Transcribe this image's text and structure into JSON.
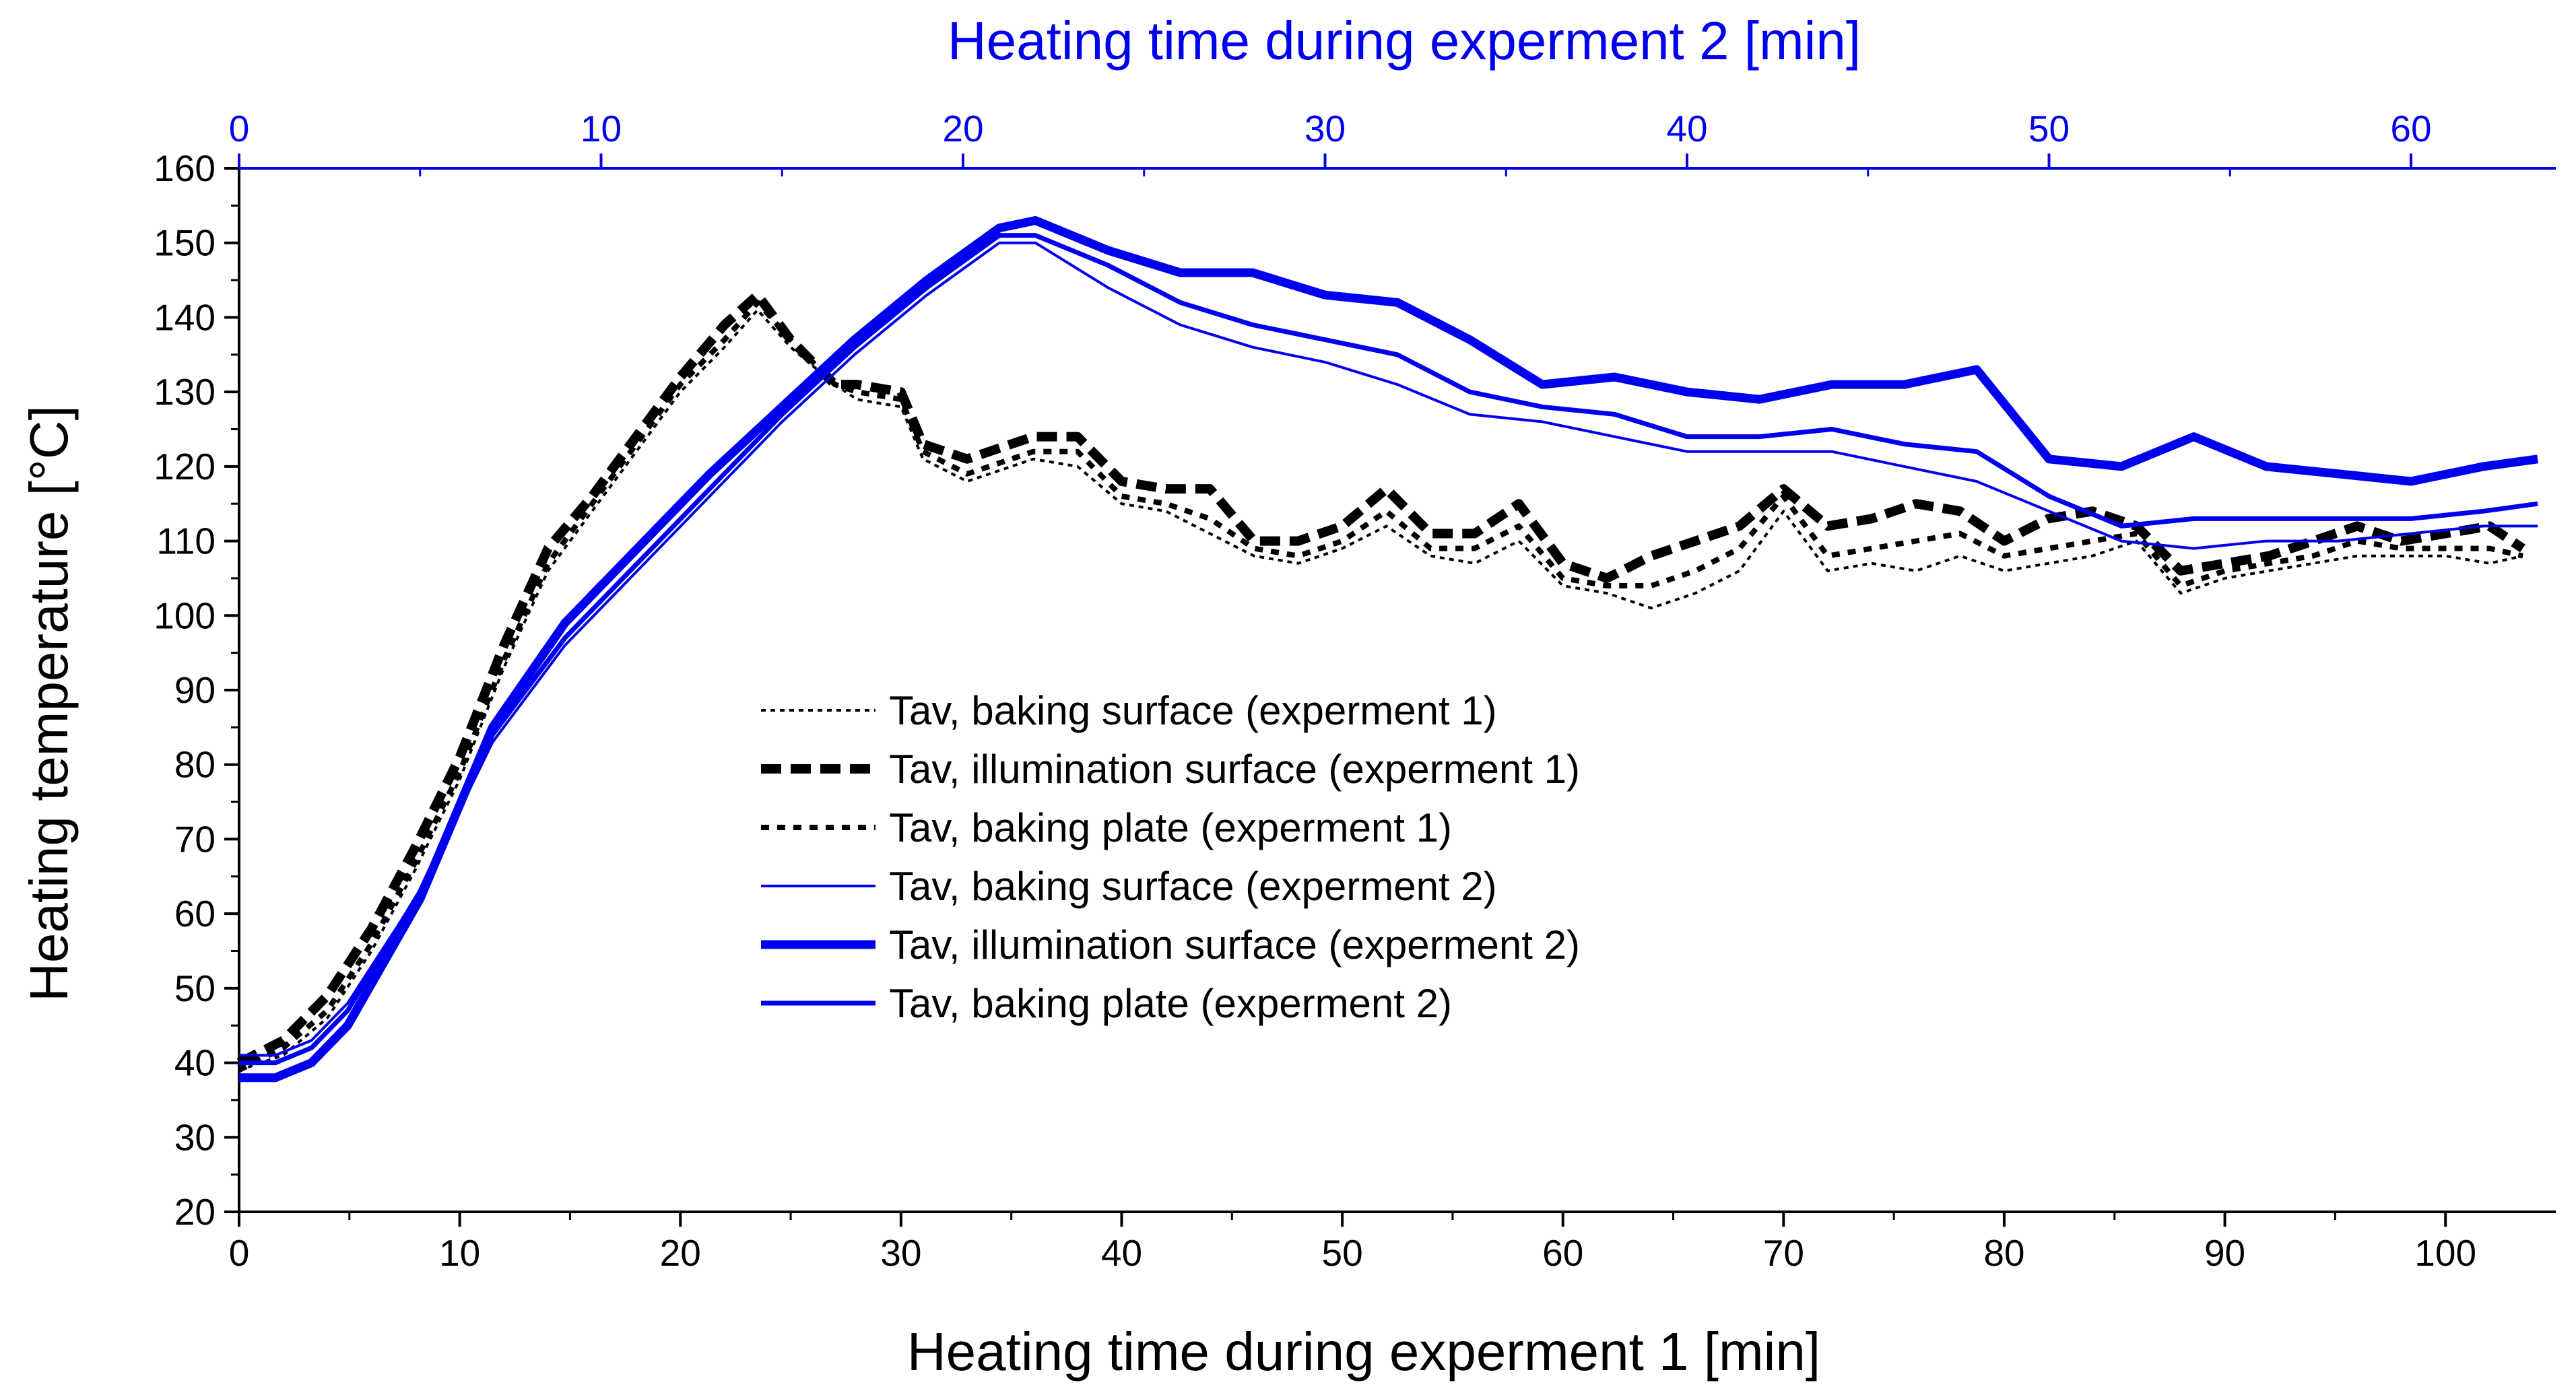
{
  "chart_data": {
    "type": "line",
    "title": "",
    "xlabel": "Heating time during experment 1 [min]",
    "x2label": "Heating time during experment 2 [min]",
    "ylabel": "Heating temperature [°C]",
    "xlim": [
      0,
      105
    ],
    "x2lim": [
      0,
      64
    ],
    "ylim": [
      20,
      160
    ],
    "xticks": [
      "0",
      "10",
      "20",
      "30",
      "40",
      "50",
      "60",
      "70",
      "80",
      "90",
      "100"
    ],
    "x2ticks": [
      "0",
      "10",
      "20",
      "30",
      "40",
      "50",
      "60"
    ],
    "yticks": [
      "20",
      "30",
      "40",
      "50",
      "60",
      "70",
      "80",
      "90",
      "100",
      "110",
      "120",
      "130",
      "140",
      "150",
      "160"
    ],
    "legend_position": "center",
    "grid": false,
    "series": [
      {
        "name": "Tav, baking surface (experment 1)",
        "axis": "bottom",
        "color": "#000000",
        "style": "dotted-thin",
        "x": [
          0,
          2,
          4,
          6,
          8,
          10,
          12,
          14,
          16,
          18,
          20,
          22,
          23.5,
          25,
          27,
          28,
          30,
          31,
          33,
          36,
          38,
          40,
          42,
          44,
          46,
          48,
          50,
          52,
          54,
          56,
          58,
          60,
          62,
          64,
          66,
          68,
          70,
          72,
          74,
          76,
          78,
          80,
          82,
          84,
          86,
          88,
          90,
          92,
          94,
          96,
          98,
          100,
          102,
          103.5
        ],
        "y": [
          39,
          41,
          46,
          55,
          66,
          78,
          93,
          106,
          114,
          122,
          130,
          136,
          141,
          136,
          131,
          129,
          128,
          121,
          118,
          121,
          120,
          115,
          114,
          111,
          108,
          107,
          109,
          112,
          108,
          107,
          110,
          104,
          103,
          101,
          103,
          106,
          114,
          106,
          107,
          106,
          108,
          106,
          107,
          108,
          110,
          103,
          105,
          106,
          107,
          108,
          108,
          108,
          107,
          108
        ]
      },
      {
        "name": "Tav, illumination surface (experment 1)",
        "axis": "bottom",
        "color": "#000000",
        "style": "dashed-thick",
        "x": [
          0,
          2,
          4,
          6,
          8,
          10,
          12,
          14,
          16,
          18,
          20,
          22,
          23.5,
          25,
          27,
          28,
          30,
          31,
          33,
          36,
          38,
          40,
          42,
          44,
          46,
          48,
          50,
          52,
          54,
          56,
          58,
          60,
          62,
          64,
          66,
          68,
          70,
          72,
          74,
          76,
          78,
          80,
          82,
          84,
          86,
          88,
          90,
          92,
          94,
          96,
          98,
          100,
          102,
          103.5
        ],
        "y": [
          40,
          43,
          49,
          58,
          69,
          81,
          96,
          109,
          116,
          124,
          132,
          139,
          143,
          137,
          131,
          131,
          130,
          123,
          121,
          124,
          124,
          118,
          117,
          117,
          110,
          110,
          112,
          117,
          111,
          111,
          115,
          107,
          105,
          108,
          110,
          112,
          117,
          112,
          113,
          115,
          114,
          110,
          113,
          114,
          112,
          106,
          107,
          108,
          110,
          112,
          110,
          111,
          112,
          109
        ]
      },
      {
        "name": "Tav, baking plate (experment 1)",
        "axis": "bottom",
        "color": "#000000",
        "style": "dotted-medium",
        "x": [
          0,
          2,
          4,
          6,
          8,
          10,
          12,
          14,
          16,
          18,
          20,
          22,
          23.5,
          25,
          27,
          28,
          30,
          31,
          33,
          36,
          38,
          40,
          42,
          44,
          46,
          48,
          50,
          52,
          54,
          56,
          58,
          60,
          62,
          64,
          66,
          68,
          70,
          72,
          74,
          76,
          78,
          80,
          82,
          84,
          86,
          88,
          90,
          92,
          94,
          96,
          98,
          100,
          102,
          103.5
        ],
        "y": [
          39,
          42,
          47,
          56,
          67,
          79,
          94,
          107,
          115,
          123,
          131,
          137,
          142,
          137,
          131,
          130,
          129,
          122,
          119,
          122,
          122,
          116,
          115,
          113,
          109,
          108,
          110,
          114,
          109,
          109,
          112,
          105,
          104,
          104,
          106,
          109,
          116,
          108,
          109,
          110,
          111,
          108,
          109,
          110,
          111,
          104,
          106,
          107,
          108,
          110,
          109,
          109,
          109,
          108
        ]
      },
      {
        "name": "Tav, baking surface (experment 2)",
        "axis": "top",
        "color": "#0000ee",
        "style": "solid-thin",
        "x": [
          0,
          1,
          2,
          3,
          5,
          7,
          9,
          11,
          13,
          15,
          17,
          19,
          21,
          22,
          24,
          26,
          28,
          30,
          32,
          34,
          36,
          38,
          40,
          42,
          44,
          46,
          48,
          50,
          52,
          54,
          56,
          58,
          60,
          62,
          63.5
        ],
        "y": [
          41,
          41,
          43,
          48,
          63,
          83,
          96,
          106,
          116,
          126,
          135,
          143,
          150,
          150,
          144,
          139,
          136,
          134,
          131,
          127,
          126,
          124,
          122,
          122,
          122,
          120,
          118,
          114,
          110,
          109,
          110,
          110,
          111,
          112,
          112
        ]
      },
      {
        "name": "Tav, illumination surface (experment 2)",
        "axis": "top",
        "color": "#0000ee",
        "style": "solid-thick",
        "x": [
          0,
          1,
          2,
          3,
          5,
          7,
          9,
          11,
          13,
          15,
          17,
          19,
          21,
          22,
          24,
          26,
          28,
          30,
          32,
          34,
          36,
          38,
          40,
          42,
          44,
          46,
          48,
          50,
          52,
          54,
          56,
          58,
          60,
          62,
          63.5
        ],
        "y": [
          38,
          38,
          40,
          45,
          62,
          85,
          99,
          109,
          119,
          128,
          137,
          145,
          152,
          153,
          149,
          146,
          146,
          143,
          142,
          137,
          131,
          132,
          130,
          129,
          131,
          131,
          133,
          121,
          120,
          124,
          120,
          119,
          118,
          120,
          121
        ]
      },
      {
        "name": "Tav, baking plate (experment 2)",
        "axis": "top",
        "color": "#0000ee",
        "style": "solid-medium",
        "x": [
          0,
          1,
          2,
          3,
          5,
          7,
          9,
          11,
          13,
          15,
          17,
          19,
          21,
          22,
          24,
          26,
          28,
          30,
          32,
          34,
          36,
          38,
          40,
          42,
          44,
          46,
          48,
          50,
          52,
          54,
          56,
          58,
          60,
          62,
          63.5
        ],
        "y": [
          40,
          40,
          42,
          47,
          63,
          84,
          97,
          107,
          117,
          127,
          136,
          144,
          151,
          151,
          147,
          142,
          139,
          137,
          135,
          130,
          128,
          127,
          124,
          124,
          125,
          123,
          122,
          116,
          112,
          113,
          113,
          113,
          113,
          114,
          115
        ]
      }
    ]
  }
}
